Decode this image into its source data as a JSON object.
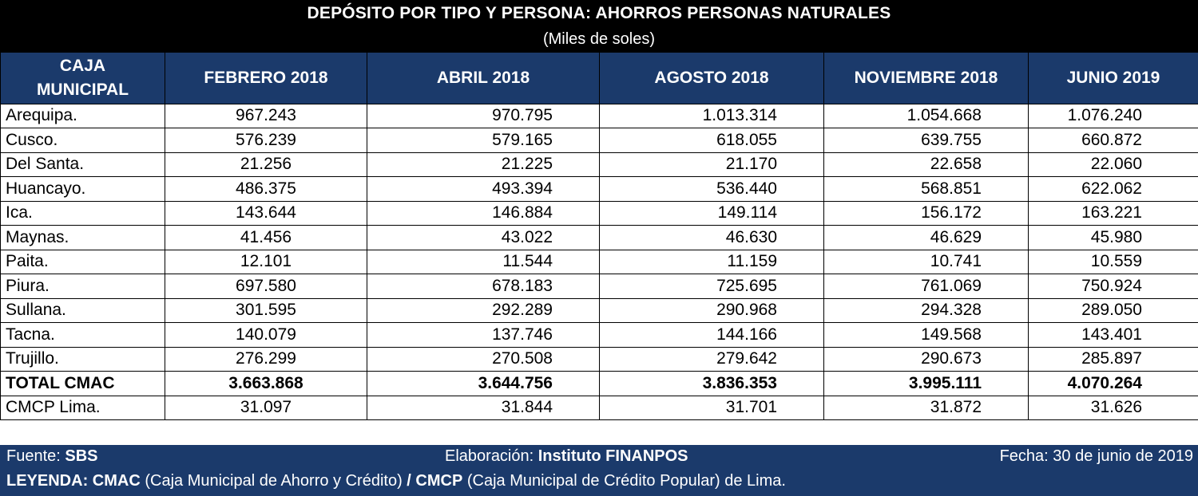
{
  "title": "DEPÓSITO POR TIPO Y PERSONA: AHORROS PERSONAS NATURALES",
  "subtitle": "(Miles de soles)",
  "columns": [
    "CAJA MUNICIPAL",
    "FEBRERO 2018",
    "ABRIL 2018",
    "AGOSTO 2018",
    "NOVIEMBRE 2018",
    "JUNIO 2019"
  ],
  "rows": [
    {
      "name": "Arequipa.",
      "values": [
        "967.243",
        "970.795",
        "1.013.314",
        "1.054.668",
        "1.076.240"
      ]
    },
    {
      "name": "Cusco.",
      "values": [
        "576.239",
        "579.165",
        "618.055",
        "639.755",
        "660.872"
      ]
    },
    {
      "name": "Del Santa.",
      "values": [
        "21.256",
        "21.225",
        "21.170",
        "22.658",
        "22.060"
      ]
    },
    {
      "name": "Huancayo.",
      "values": [
        "486.375",
        "493.394",
        "536.440",
        "568.851",
        "622.062"
      ]
    },
    {
      "name": "Ica.",
      "values": [
        "143.644",
        "146.884",
        "149.114",
        "156.172",
        "163.221"
      ]
    },
    {
      "name": "Maynas.",
      "values": [
        "41.456",
        "43.022",
        "46.630",
        "46.629",
        "45.980"
      ]
    },
    {
      "name": "Paita.",
      "values": [
        "12.101",
        "11.544",
        "11.159",
        "10.741",
        "10.559"
      ]
    },
    {
      "name": "Piura.",
      "values": [
        "697.580",
        "678.183",
        "725.695",
        "761.069",
        "750.924"
      ]
    },
    {
      "name": "Sullana.",
      "values": [
        "301.595",
        "292.289",
        "290.968",
        "294.328",
        "289.050"
      ]
    },
    {
      "name": "Tacna.",
      "values": [
        "140.079",
        "137.746",
        "144.166",
        "149.568",
        "143.401"
      ]
    },
    {
      "name": "Trujillo.",
      "values": [
        "276.299",
        "270.508",
        "279.642",
        "290.673",
        "285.897"
      ]
    },
    {
      "name": "TOTAL CMAC",
      "values": [
        "3.663.868",
        "3.644.756",
        "3.836.353",
        "3.995.111",
        "4.070.264"
      ],
      "total": true
    },
    {
      "name": "CMCP Lima.",
      "values": [
        "31.097",
        "31.844",
        "31.701",
        "31.872",
        "31.626"
      ]
    }
  ],
  "footer": {
    "source_label": "Fuente:",
    "source_value": "SBS",
    "elab_label": "Elaboración:",
    "elab_value": "Instituto FINANPOS",
    "date": "Fecha: 30 de junio de 2019",
    "legend_label": "LEYENDA:",
    "legend_cmac": "CMAC",
    "legend_cmac_desc": "(Caja Municipal de Ahorro y Crédito)",
    "legend_sep": "/",
    "legend_cmcp": "CMCP",
    "legend_cmcp_desc": "(Caja Municipal de Crédito Popular) de Lima."
  },
  "colors": {
    "header_bg": "#1b3a6b",
    "title_bg": "#000000"
  }
}
